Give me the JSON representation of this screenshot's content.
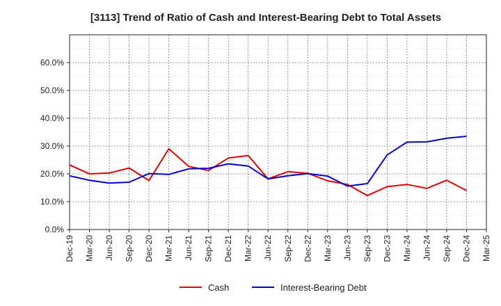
{
  "chart_data": {
    "type": "line",
    "title": "[3113]  Trend of Ratio of Cash and Interest-Bearing Debt to Total Assets",
    "xlabel": "",
    "ylabel": "",
    "ylim": [
      0,
      0.7
    ],
    "y_ticks": [
      0.0,
      0.1,
      0.2,
      0.3,
      0.4,
      0.5,
      0.6
    ],
    "y_tick_labels": [
      "0.0%",
      "10.0%",
      "20.0%",
      "30.0%",
      "40.0%",
      "50.0%",
      "60.0%"
    ],
    "x_tick_labels": [
      "Dec-19",
      "Mar-20",
      "Jun-20",
      "Sep-20",
      "Dec-20",
      "Mar-21",
      "Jun-21",
      "Sep-21",
      "Dec-21",
      "Mar-22",
      "Jun-22",
      "Sep-22",
      "Dec-22",
      "Mar-23",
      "Jun-23",
      "Sep-23",
      "Dec-23",
      "Mar-24",
      "Jun-24",
      "Sep-24",
      "Dec-24",
      "Mar-25"
    ],
    "grid": true,
    "legend_position": "bottom-center",
    "series": [
      {
        "name": "Cash",
        "color": "#e00000",
        "values": [
          0.232,
          0.2,
          0.203,
          0.221,
          0.176,
          0.29,
          0.227,
          0.212,
          0.257,
          0.266,
          0.182,
          0.208,
          0.202,
          0.175,
          0.162,
          0.122,
          0.154,
          0.162,
          0.148,
          0.177,
          0.14
        ]
      },
      {
        "name": "Interest-Bearing Debt",
        "color": "#0000d0",
        "values": [
          0.193,
          0.177,
          0.167,
          0.17,
          0.201,
          0.198,
          0.218,
          0.22,
          0.236,
          0.228,
          0.182,
          0.193,
          0.201,
          0.192,
          0.156,
          0.165,
          0.268,
          0.314,
          0.315,
          0.328,
          0.335
        ]
      }
    ]
  }
}
